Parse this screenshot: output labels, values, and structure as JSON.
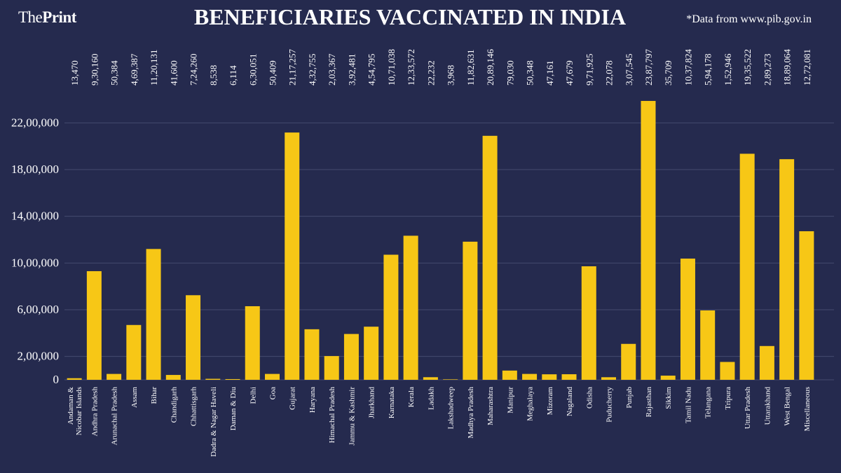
{
  "header": {
    "logo_part1": "The",
    "logo_part2": "Print",
    "title": "BENEFICIARIES VACCINATED IN INDIA",
    "source": "*Data from www.pib.gov.in"
  },
  "colors": {
    "background": "#252a4e",
    "bar": "#f7c716",
    "grid": "#454a6e",
    "text": "#ffffff"
  },
  "chart_data": {
    "type": "bar",
    "title": "BENEFICIARIES VACCINATED IN INDIA",
    "xlabel": "",
    "ylabel": "",
    "ylim": [
      0,
      2400000
    ],
    "grid": true,
    "yticks": [
      0,
      200000,
      600000,
      1000000,
      1400000,
      1800000,
      2200000
    ],
    "ytick_labels": [
      "0",
      "2,00,000",
      "6,00,000",
      "10,00,000",
      "14,00,000",
      "18,00,000",
      "22,00,000"
    ],
    "categories": [
      "Andaman & Nicobar Islands",
      "Andhra Pradesh",
      "Arunachal Pradesh",
      "Assam",
      "Bihar",
      "Chandigarh",
      "Chhattisgarh",
      "Dadra & Nagar Haveli",
      "Daman & Diu",
      "Delhi",
      "Goa",
      "Gujarat",
      "Haryana",
      "Himachal Pradesh",
      "Jammu & Kashmir",
      "Jharkhand",
      "Karnataka",
      "Kerala",
      "Ladakh",
      "Lakshadweep",
      "Madhya Pradesh",
      "Maharashtra",
      "Manipur",
      "Meghalaya",
      "Mizoram",
      "Nagaland",
      "Odisha",
      "Puducherry",
      "Punjab",
      "Rajasthan",
      "Sikkim",
      "Tamil Nadu",
      "Telangana",
      "Tripura",
      "Uttar Pradesh",
      "Uttarakhand",
      "West Bengal",
      "Miscellaneous"
    ],
    "values": [
      13470,
      930160,
      50384,
      469387,
      1120131,
      41600,
      724260,
      8538,
      6114,
      630051,
      50409,
      2117257,
      432755,
      203367,
      392481,
      454795,
      1071038,
      1233572,
      22232,
      3968,
      1182631,
      2089146,
      79030,
      50348,
      47161,
      47679,
      971925,
      22078,
      307545,
      2387797,
      35709,
      1037824,
      594178,
      152946,
      1935522,
      289273,
      1889064,
      1272081
    ],
    "value_labels": [
      "13,470",
      "9,30,160",
      "50,384",
      "4,69,387",
      "11,20,131",
      "41,600",
      "7,24,260",
      "8,538",
      "6,114",
      "6,30,051",
      "50,409",
      "21,17,257",
      "4,32,755",
      "2,03,367",
      "3,92,481",
      "4,54,795",
      "10,71,038",
      "12,33,572",
      "22,232",
      "3,968",
      "11,82,631",
      "20,89,146",
      "79,030",
      "50,348",
      "47,161",
      "47,679",
      "9,71,925",
      "22,078",
      "3,07,545",
      "23,87,797",
      "35,709",
      "10,37,824",
      "5,94,178",
      "1,52,946",
      "19,35,522",
      "2,89,273",
      "18,89,064",
      "12,72,081"
    ],
    "category_label_lines": [
      [
        "Andaman &",
        "Nicobar Islands"
      ],
      [
        "Andhra Pradesh"
      ],
      [
        "Arunachal Pradesh"
      ],
      [
        "Assam"
      ],
      [
        "Bihar"
      ],
      [
        "Chandigarh"
      ],
      [
        "Chhattisgarh"
      ],
      [
        "Dadra & Nagar Haveli"
      ],
      [
        "Daman & Diu"
      ],
      [
        "Delhi"
      ],
      [
        "Goa"
      ],
      [
        "Gujarat"
      ],
      [
        "Haryana"
      ],
      [
        "Himachal Pradesh"
      ],
      [
        "Jammu & Kashmir"
      ],
      [
        "Jharkhand"
      ],
      [
        "Karnataka"
      ],
      [
        "Kerala"
      ],
      [
        "Ladakh"
      ],
      [
        "Lakshadweep"
      ],
      [
        "Madhya Pradesh"
      ],
      [
        "Maharashtra"
      ],
      [
        "Manipur"
      ],
      [
        "Meghalaya"
      ],
      [
        "Mizoram"
      ],
      [
        "Nagaland"
      ],
      [
        "Odisha"
      ],
      [
        "Puducherry"
      ],
      [
        "Punjab"
      ],
      [
        "Rajasthan"
      ],
      [
        "Sikkim"
      ],
      [
        "Tamil Nadu"
      ],
      [
        "Telangana"
      ],
      [
        "Tripura"
      ],
      [
        "Uttar Pradesh"
      ],
      [
        "Uttarakhand"
      ],
      [
        "West Bengal"
      ],
      [
        "Miscellaneous"
      ]
    ]
  }
}
